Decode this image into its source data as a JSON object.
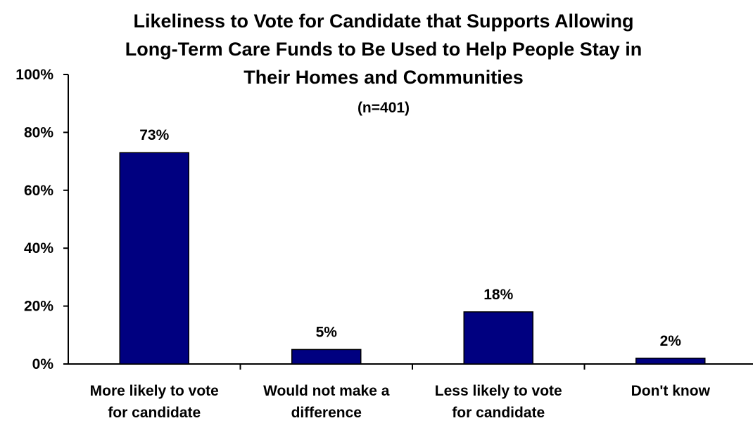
{
  "chart_data": {
    "type": "bar",
    "title_lines": [
      "Likeliness to Vote for Candidate that Supports Allowing",
      "Long-Term Care Funds to Be Used to Help People Stay in",
      "Their Homes and Communities"
    ],
    "subtitle": "(n=401)",
    "categories": [
      [
        "More likely to vote",
        "for candidate"
      ],
      [
        "Would not make a",
        "difference"
      ],
      [
        "Less likely to vote",
        "for candidate"
      ],
      [
        "Don't know"
      ]
    ],
    "values": [
      73,
      5,
      18,
      2
    ],
    "data_labels": [
      "73%",
      "5%",
      "18%",
      "2%"
    ],
    "y_ticks": [
      0,
      20,
      40,
      60,
      80,
      100
    ],
    "y_tick_labels": [
      "0%",
      "20%",
      "40%",
      "60%",
      "80%",
      "100%"
    ],
    "ylim": [
      0,
      100
    ],
    "bar_color": "#000080",
    "grid": false,
    "legend": "none"
  }
}
